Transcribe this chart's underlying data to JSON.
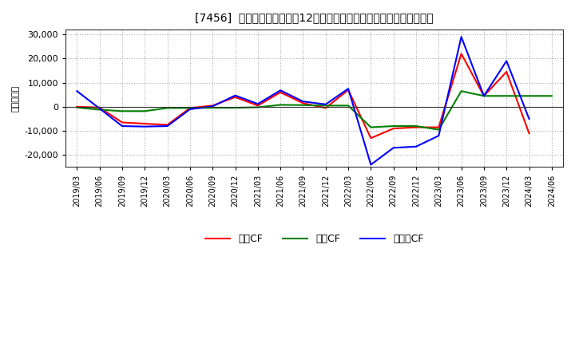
{
  "title": "[7456]  キャッシュフローの12か月移動合計の対前年同期増減額の推移",
  "ylabel": "（百万円）",
  "bg_color": "#ffffff",
  "plot_bg_color": "#ffffff",
  "grid_color": "#aaaaaa",
  "ylim": [
    -25000,
    32000
  ],
  "yticks": [
    -20000,
    -10000,
    0,
    10000,
    20000,
    30000
  ],
  "dates": [
    "2019/03",
    "2019/06",
    "2019/09",
    "2019/12",
    "2020/03",
    "2020/06",
    "2020/09",
    "2020/12",
    "2021/03",
    "2021/06",
    "2021/09",
    "2021/12",
    "2022/03",
    "2022/06",
    "2022/09",
    "2022/12",
    "2023/03",
    "2023/06",
    "2023/09",
    "2023/12",
    "2024/03",
    "2024/06"
  ],
  "eigyo_cf": [
    0,
    -300,
    -6500,
    -7000,
    -7500,
    -500,
    500,
    4000,
    500,
    6000,
    1500,
    -500,
    7000,
    -13000,
    -9000,
    -8500,
    -8500,
    22000,
    4500,
    14500,
    -11000,
    null
  ],
  "toshi_cf": [
    -300,
    -1200,
    -1800,
    -1800,
    -500,
    -500,
    -400,
    -400,
    -200,
    800,
    700,
    500,
    500,
    -8500,
    -8000,
    -8000,
    -9500,
    6500,
    4500,
    4500,
    4500,
    4500
  ],
  "free_cf": [
    6500,
    -700,
    -8000,
    -8200,
    -8000,
    -1000,
    200,
    4700,
    1200,
    6800,
    2200,
    1000,
    7500,
    -24000,
    -17000,
    -16500,
    -12000,
    29000,
    4500,
    19000,
    -5000,
    null
  ],
  "eigyo_color": "#ff0000",
  "toshi_color": "#008000",
  "free_color": "#0000ff",
  "line_width": 1.5,
  "legend_labels": [
    "営業CF",
    "投資CF",
    "フリーCF"
  ]
}
